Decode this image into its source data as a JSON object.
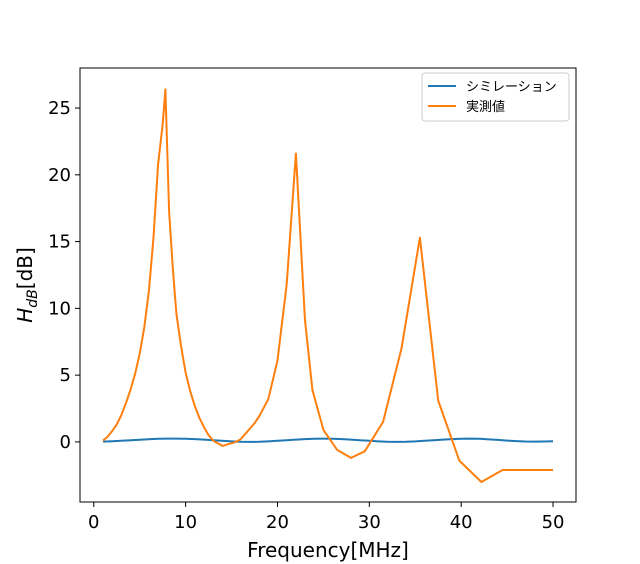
{
  "chart_data": {
    "type": "line",
    "title": "",
    "xlabel": "Frequency[MHz]",
    "ylabel_main": "H",
    "ylabel_sub": "dB",
    "ylabel_unit": "[dB]",
    "xlim": [
      -1.5,
      52.5
    ],
    "ylim": [
      -4.5,
      28
    ],
    "xticks": [
      0,
      10,
      20,
      30,
      40,
      50
    ],
    "yticks": [
      0,
      5,
      10,
      15,
      20,
      25
    ],
    "grid": false,
    "legend_position": "top-right",
    "series": [
      {
        "name": "シミレーション",
        "color": "#1f77b4",
        "x": [
          1,
          2,
          3,
          4,
          5,
          6,
          7,
          8,
          9,
          10,
          11,
          12,
          13,
          14,
          15,
          16,
          17,
          18,
          19,
          20,
          21,
          22,
          23,
          24,
          25,
          26,
          27,
          28,
          29,
          30,
          31,
          32,
          33,
          34,
          35,
          36,
          37,
          38,
          39,
          40,
          41,
          42,
          43,
          44,
          45,
          46,
          47,
          48,
          49,
          50
        ],
        "y": [
          0.02,
          0.05,
          0.08,
          0.12,
          0.16,
          0.2,
          0.23,
          0.25,
          0.25,
          0.24,
          0.21,
          0.17,
          0.13,
          0.08,
          0.04,
          0.01,
          0.0,
          0.01,
          0.04,
          0.08,
          0.13,
          0.17,
          0.21,
          0.24,
          0.25,
          0.24,
          0.21,
          0.17,
          0.12,
          0.08,
          0.04,
          0.01,
          0.0,
          0.01,
          0.04,
          0.08,
          0.13,
          0.17,
          0.21,
          0.24,
          0.25,
          0.23,
          0.19,
          0.15,
          0.1,
          0.06,
          0.03,
          0.02,
          0.03,
          0.05
        ]
      },
      {
        "name": "実測値",
        "color": "#ff7f0e",
        "x": [
          1,
          1.5,
          2,
          2.5,
          3,
          3.5,
          4,
          4.5,
          5,
          5.5,
          6,
          6.5,
          7,
          7.5,
          7.8,
          8.2,
          8.6,
          9,
          9.5,
          10,
          10.5,
          11,
          11.5,
          12,
          12.5,
          13,
          13.5,
          14,
          14.5,
          15,
          15.5,
          16,
          16.5,
          17,
          17.5,
          18,
          19,
          20,
          21,
          22,
          23,
          23.8,
          25,
          26.5,
          28,
          29.5,
          31.5,
          33.5,
          35.5,
          37.5,
          39.8,
          42.2,
          44.5,
          47.2,
          50
        ],
        "y": [
          0.1,
          0.4,
          0.8,
          1.3,
          2.0,
          2.9,
          3.9,
          5.1,
          6.6,
          8.6,
          11.3,
          15.3,
          20.8,
          23.8,
          26.4,
          17.3,
          13.0,
          9.6,
          7.2,
          5.2,
          3.8,
          2.7,
          1.8,
          1.1,
          0.5,
          0.1,
          -0.1,
          -0.3,
          -0.2,
          -0.1,
          0.0,
          0.2,
          0.6,
          1.0,
          1.4,
          1.9,
          3.2,
          6.1,
          11.8,
          21.6,
          9.1,
          3.9,
          0.9,
          -0.6,
          -1.2,
          -0.7,
          1.5,
          7.0,
          15.3,
          3.1,
          -1.4,
          -3.0,
          -2.1,
          -2.1,
          -2.1
        ]
      }
    ]
  }
}
